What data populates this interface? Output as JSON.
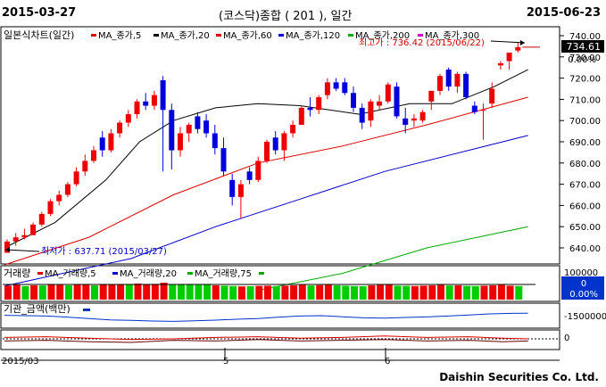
{
  "header": {
    "start_date": "2015-03-27",
    "title": "(코스닥)종합 ( 201 ), 일간",
    "end_date": "2015-06-23"
  },
  "price_panel": {
    "legend_label": "일본식차트(일간)",
    "ma_labels": [
      "MA_종가,5",
      "MA_종가,20",
      "MA_종가,60",
      "MA_종가,120",
      "MA_종가,200",
      "MA_종가,300"
    ],
    "ma_colors": [
      "#dd0000",
      "#000000",
      "#dd0000",
      "#0000cc",
      "#00aa00",
      "#cc00cc"
    ],
    "high_label": "최고가 : 736.42 (2015/06/22)",
    "low_label": "최저가 : 637.71 (2015/03/27)",
    "current_value": "734.61",
    "change_pct": "0.00%",
    "y_ticks": [
      "740.00",
      "730.00",
      "720.00",
      "710.00",
      "700.00",
      "690.00",
      "680.00",
      "670.00",
      "660.00",
      "650.00",
      "640.00"
    ]
  },
  "volume_panel": {
    "label": "거래량",
    "ma_labels": [
      "MA_거래량,5",
      "MA_거래량,20",
      "MA_거래량,75"
    ],
    "y_tick": "100000",
    "value": "0",
    "change_pct": "0.00%"
  },
  "institution_panel": {
    "label": "기관_금액(백만)",
    "y_tick": "-1500000"
  },
  "oscillator_panel": {
    "y_tick": "0"
  },
  "x_axis": {
    "labels": [
      "2015/03",
      "5",
      "6"
    ]
  },
  "footer": {
    "company": "Daishin Securities Co. Ltd."
  },
  "chart_data": {
    "type": "candlestick",
    "y_range": [
      632,
      742
    ],
    "candles": [
      {
        "o": 637.7,
        "h": 644,
        "l": 637.7,
        "c": 643
      },
      {
        "o": 643,
        "h": 647,
        "l": 641,
        "c": 645
      },
      {
        "o": 645,
        "h": 649,
        "l": 644,
        "c": 646
      },
      {
        "o": 646,
        "h": 652,
        "l": 646,
        "c": 651
      },
      {
        "o": 651,
        "h": 657,
        "l": 650,
        "c": 656
      },
      {
        "o": 656,
        "h": 663,
        "l": 655,
        "c": 662
      },
      {
        "o": 662,
        "h": 667,
        "l": 660,
        "c": 665
      },
      {
        "o": 665,
        "h": 671,
        "l": 664,
        "c": 670
      },
      {
        "o": 670,
        "h": 678,
        "l": 669,
        "c": 676
      },
      {
        "o": 676,
        "h": 684,
        "l": 674,
        "c": 681
      },
      {
        "o": 681,
        "h": 688,
        "l": 680,
        "c": 686
      },
      {
        "o": 692,
        "h": 695,
        "l": 683,
        "c": 686
      },
      {
        "o": 686,
        "h": 696,
        "l": 685,
        "c": 694
      },
      {
        "o": 694,
        "h": 700,
        "l": 692,
        "c": 699
      },
      {
        "o": 699,
        "h": 705,
        "l": 697,
        "c": 703
      },
      {
        "o": 703,
        "h": 710,
        "l": 701,
        "c": 709
      },
      {
        "o": 709,
        "h": 713,
        "l": 705,
        "c": 707
      },
      {
        "o": 707,
        "h": 714,
        "l": 705,
        "c": 712
      },
      {
        "o": 719,
        "h": 721,
        "l": 676,
        "c": 705
      },
      {
        "o": 705,
        "h": 708,
        "l": 677,
        "c": 686
      },
      {
        "o": 686,
        "h": 697,
        "l": 683,
        "c": 694
      },
      {
        "o": 694,
        "h": 699,
        "l": 690,
        "c": 698
      },
      {
        "o": 702,
        "h": 704,
        "l": 694,
        "c": 696
      },
      {
        "o": 700,
        "h": 703,
        "l": 692,
        "c": 694
      },
      {
        "o": 694,
        "h": 698,
        "l": 684,
        "c": 687
      },
      {
        "o": 687,
        "h": 692,
        "l": 674,
        "c": 676
      },
      {
        "o": 672,
        "h": 675,
        "l": 660,
        "c": 664
      },
      {
        "o": 664,
        "h": 672,
        "l": 654,
        "c": 670
      },
      {
        "o": 676,
        "h": 678,
        "l": 670,
        "c": 672
      },
      {
        "o": 672,
        "h": 683,
        "l": 671,
        "c": 681
      },
      {
        "o": 681,
        "h": 691,
        "l": 680,
        "c": 690
      },
      {
        "o": 692,
        "h": 695,
        "l": 684,
        "c": 686
      },
      {
        "o": 686,
        "h": 695,
        "l": 681,
        "c": 694
      },
      {
        "o": 694,
        "h": 700,
        "l": 692,
        "c": 698
      },
      {
        "o": 698,
        "h": 707,
        "l": 698,
        "c": 706
      },
      {
        "o": 706,
        "h": 711,
        "l": 702,
        "c": 705
      },
      {
        "o": 705,
        "h": 712,
        "l": 703,
        "c": 711
      },
      {
        "o": 712,
        "h": 720,
        "l": 710,
        "c": 718
      },
      {
        "o": 718,
        "h": 720,
        "l": 714,
        "c": 715
      },
      {
        "o": 718,
        "h": 720,
        "l": 712,
        "c": 713
      },
      {
        "o": 713,
        "h": 716,
        "l": 704,
        "c": 706
      },
      {
        "o": 706,
        "h": 708,
        "l": 696,
        "c": 699
      },
      {
        "o": 700,
        "h": 710,
        "l": 697,
        "c": 709
      },
      {
        "o": 707,
        "h": 712,
        "l": 705,
        "c": 709
      },
      {
        "o": 709,
        "h": 718,
        "l": 708,
        "c": 717
      },
      {
        "o": 716,
        "h": 718,
        "l": 701,
        "c": 702
      },
      {
        "o": 701,
        "h": 706,
        "l": 694,
        "c": 698
      },
      {
        "o": 700,
        "h": 703,
        "l": 697,
        "c": 701
      },
      {
        "o": 700,
        "h": 705,
        "l": 699,
        "c": 704
      },
      {
        "o": 709,
        "h": 714,
        "l": 705,
        "c": 714
      },
      {
        "o": 714,
        "h": 722,
        "l": 712,
        "c": 721
      },
      {
        "o": 724,
        "h": 725,
        "l": 714,
        "c": 716
      },
      {
        "o": 716,
        "h": 723,
        "l": 713,
        "c": 722
      },
      {
        "o": 722,
        "h": 723,
        "l": 710,
        "c": 711
      },
      {
        "o": 707,
        "h": 709,
        "l": 703,
        "c": 704
      },
      {
        "o": 705,
        "h": 708,
        "l": 691,
        "c": 705
      },
      {
        "o": 708,
        "h": 718,
        "l": 706,
        "c": 715
      },
      {
        "o": 726,
        "h": 728,
        "l": 724,
        "c": 727
      },
      {
        "o": 728,
        "h": 731,
        "l": 724,
        "c": 732
      },
      {
        "o": 733,
        "h": 737,
        "l": 732,
        "c": 734.6
      }
    ],
    "ma5": [
      [
        0,
        642
      ],
      [
        8,
        660
      ],
      [
        16,
        700
      ],
      [
        20,
        712
      ],
      [
        24,
        706
      ],
      [
        30,
        690
      ],
      [
        36,
        676
      ],
      [
        44,
        684
      ],
      [
        52,
        700
      ],
      [
        60,
        714
      ],
      [
        70,
        716
      ],
      [
        80,
        712
      ],
      [
        90,
        716
      ],
      [
        100,
        714
      ],
      [
        108,
        711
      ],
      [
        118,
        724
      ],
      [
        124,
        730
      ]
    ],
    "ma20": [
      [
        0,
        640
      ],
      [
        12,
        652
      ],
      [
        24,
        672
      ],
      [
        32,
        690
      ],
      [
        40,
        700
      ],
      [
        50,
        706
      ],
      [
        60,
        708
      ],
      [
        70,
        707
      ],
      [
        84,
        703
      ],
      [
        96,
        708
      ],
      [
        106,
        708
      ],
      [
        116,
        716
      ],
      [
        124,
        724
      ]
    ],
    "ma60": [
      [
        0,
        632
      ],
      [
        20,
        645
      ],
      [
        40,
        665
      ],
      [
        60,
        680
      ],
      [
        80,
        688
      ],
      [
        100,
        698
      ],
      [
        124,
        711
      ]
    ],
    "ma120": [
      [
        0,
        622
      ],
      [
        30,
        635
      ],
      [
        50,
        650
      ],
      [
        70,
        663
      ],
      [
        90,
        676
      ],
      [
        110,
        686
      ],
      [
        124,
        693
      ]
    ],
    "ma200": [
      [
        60,
        620
      ],
      [
        80,
        628
      ],
      [
        100,
        640
      ],
      [
        124,
        650
      ]
    ],
    "volume": [
      [
        0,
        0.78,
        "r"
      ],
      [
        1,
        0.82,
        "r"
      ],
      [
        2,
        0.76,
        "g"
      ],
      [
        3,
        0.8,
        "r"
      ],
      [
        4,
        0.79,
        "g"
      ],
      [
        5,
        0.85,
        "r"
      ],
      [
        6,
        0.82,
        "r"
      ],
      [
        7,
        0.8,
        "g"
      ],
      [
        8,
        0.84,
        "r"
      ],
      [
        9,
        0.86,
        "r"
      ],
      [
        10,
        0.8,
        "g"
      ],
      [
        11,
        0.83,
        "r"
      ],
      [
        12,
        0.85,
        "r"
      ],
      [
        13,
        0.87,
        "r"
      ],
      [
        14,
        0.86,
        "g"
      ],
      [
        15,
        0.9,
        "r"
      ],
      [
        16,
        0.84,
        "r"
      ],
      [
        17,
        0.88,
        "r"
      ],
      [
        18,
        0.95,
        "r"
      ],
      [
        19,
        0.86,
        "g"
      ],
      [
        20,
        0.84,
        "g"
      ],
      [
        21,
        0.83,
        "g"
      ],
      [
        22,
        0.82,
        "g"
      ],
      [
        23,
        0.85,
        "g"
      ],
      [
        24,
        0.8,
        "r"
      ],
      [
        25,
        0.78,
        "g"
      ],
      [
        26,
        0.76,
        "g"
      ],
      [
        27,
        0.74,
        "r"
      ],
      [
        28,
        0.75,
        "g"
      ],
      [
        29,
        0.77,
        "r"
      ],
      [
        30,
        0.78,
        "r"
      ],
      [
        31,
        0.76,
        "g"
      ],
      [
        32,
        0.78,
        "r"
      ],
      [
        33,
        0.8,
        "r"
      ],
      [
        34,
        0.82,
        "r"
      ],
      [
        35,
        0.79,
        "g"
      ],
      [
        36,
        0.81,
        "r"
      ],
      [
        37,
        0.84,
        "r"
      ],
      [
        38,
        0.8,
        "g"
      ],
      [
        39,
        0.78,
        "g"
      ],
      [
        40,
        0.76,
        "g"
      ],
      [
        41,
        0.75,
        "g"
      ],
      [
        42,
        0.8,
        "r"
      ],
      [
        43,
        0.82,
        "r"
      ],
      [
        44,
        0.85,
        "r"
      ],
      [
        45,
        0.78,
        "g"
      ],
      [
        46,
        0.77,
        "g"
      ],
      [
        47,
        0.76,
        "r"
      ],
      [
        48,
        0.78,
        "r"
      ],
      [
        49,
        0.8,
        "r"
      ],
      [
        50,
        0.82,
        "r"
      ],
      [
        51,
        0.79,
        "g"
      ],
      [
        52,
        0.8,
        "r"
      ],
      [
        53,
        0.77,
        "g"
      ],
      [
        54,
        0.76,
        "g"
      ],
      [
        55,
        0.78,
        "r"
      ],
      [
        56,
        0.8,
        "r"
      ],
      [
        57,
        0.82,
        "r"
      ],
      [
        58,
        0.78,
        "r"
      ],
      [
        59,
        0.76,
        "g"
      ]
    ],
    "institution": [
      [
        0,
        -380
      ],
      [
        5,
        -400
      ],
      [
        10,
        -420
      ],
      [
        15,
        -480
      ],
      [
        20,
        -560
      ],
      [
        25,
        -640
      ],
      [
        30,
        -660
      ],
      [
        35,
        -700
      ],
      [
        40,
        -720
      ],
      [
        45,
        -690
      ],
      [
        50,
        -650
      ],
      [
        55,
        -600
      ],
      [
        60,
        -560
      ],
      [
        65,
        -480
      ],
      [
        70,
        -420
      ],
      [
        75,
        -400
      ],
      [
        80,
        -460
      ],
      [
        85,
        -520
      ],
      [
        90,
        -540
      ],
      [
        95,
        -500
      ],
      [
        100,
        -470
      ],
      [
        105,
        -420
      ],
      [
        110,
        -360
      ],
      [
        115,
        -300
      ],
      [
        120,
        -270
      ],
      [
        124,
        -260
      ]
    ],
    "oscillator_pos": [
      [
        0,
        0.2
      ],
      [
        10,
        0.3
      ],
      [
        20,
        0.1
      ],
      [
        30,
        -0.1
      ],
      [
        40,
        0.0
      ],
      [
        50,
        0.2
      ],
      [
        60,
        0.3
      ],
      [
        70,
        0.1
      ],
      [
        80,
        0.2
      ],
      [
        90,
        0.4
      ],
      [
        100,
        0.2
      ],
      [
        110,
        0.3
      ],
      [
        118,
        0.1
      ],
      [
        124,
        0.0
      ]
    ],
    "oscillator_neg": [
      [
        0,
        -0.3
      ],
      [
        10,
        -0.2
      ],
      [
        20,
        -0.4
      ],
      [
        30,
        -0.5
      ],
      [
        40,
        -0.2
      ],
      [
        50,
        -0.3
      ],
      [
        60,
        -0.1
      ],
      [
        70,
        -0.3
      ],
      [
        80,
        -0.2
      ],
      [
        90,
        -0.1
      ],
      [
        100,
        -0.3
      ],
      [
        110,
        -0.2
      ],
      [
        118,
        -0.4
      ],
      [
        124,
        -0.3
      ]
    ]
  }
}
